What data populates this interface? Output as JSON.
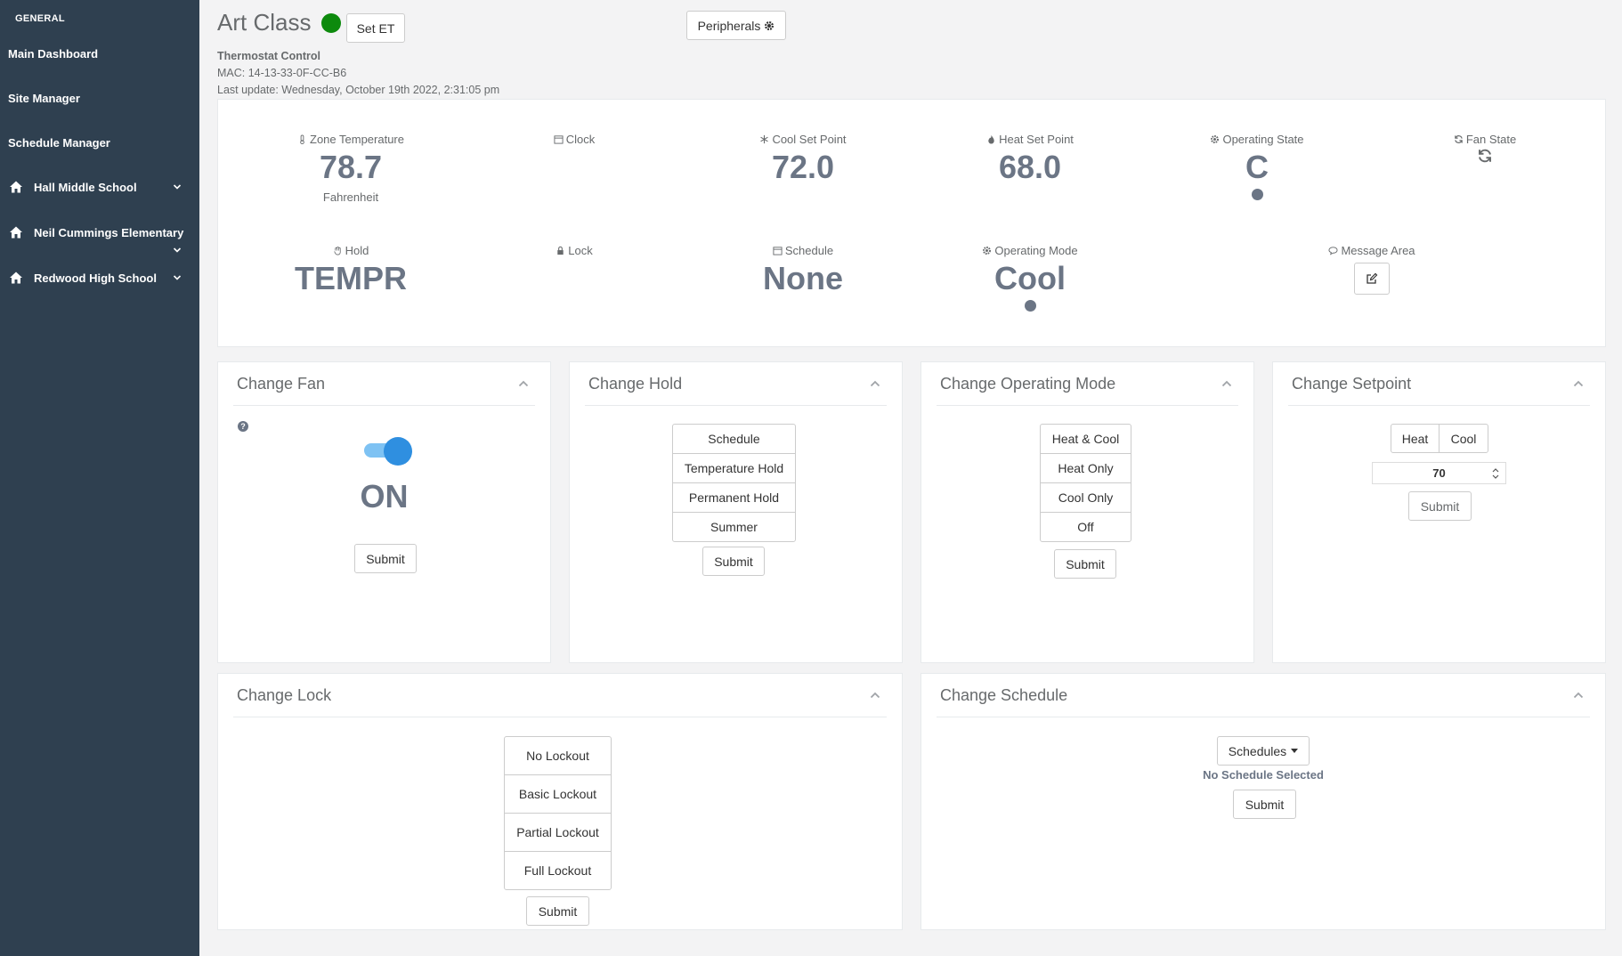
{
  "sidebar": {
    "section": "GENERAL",
    "items": [
      {
        "label": "Main Dashboard"
      },
      {
        "label": "Site Manager"
      },
      {
        "label": "Schedule Manager"
      },
      {
        "label": "Hall Middle School"
      },
      {
        "label": "Neil Cummings Elementary"
      },
      {
        "label": "Redwood High School"
      }
    ]
  },
  "header": {
    "title": "Art Class",
    "set_et_label": "Set ET",
    "peripherals_label": "Peripherals",
    "device_type": "Thermostat Control",
    "mac": "MAC: 14-13-33-0F-CC-B6",
    "last_update": "Last update: Wednesday, October 19th 2022, 2:31:05 pm",
    "status_color": "#0d8a0d"
  },
  "status": {
    "zone_temp": {
      "label": "Zone Temperature",
      "value": "78.7",
      "unit": "Fahrenheit"
    },
    "clock": {
      "label": "Clock"
    },
    "cool_set": {
      "label": "Cool Set Point",
      "value": "72.0"
    },
    "heat_set": {
      "label": "Heat Set Point",
      "value": "68.0"
    },
    "op_state": {
      "label": "Operating State",
      "value": "C"
    },
    "fan_state": {
      "label": "Fan State"
    },
    "hold": {
      "label": "Hold",
      "value": "TEMPR"
    },
    "lock": {
      "label": "Lock"
    },
    "schedule": {
      "label": "Schedule",
      "value": "None"
    },
    "op_mode": {
      "label": "Operating Mode",
      "value": "Cool"
    },
    "message": {
      "label": "Message Area"
    }
  },
  "cards": {
    "fan": {
      "title": "Change Fan",
      "state": "ON",
      "submit": "Submit"
    },
    "hold": {
      "title": "Change Hold",
      "options": [
        "Schedule",
        "Temperature Hold",
        "Permanent Hold",
        "Summer"
      ],
      "submit": "Submit"
    },
    "mode": {
      "title": "Change Operating Mode",
      "options": [
        "Heat & Cool",
        "Heat Only",
        "Cool Only",
        "Off"
      ],
      "submit": "Submit"
    },
    "setpoint": {
      "title": "Change Setpoint",
      "heat": "Heat",
      "cool": "Cool",
      "value": "70",
      "submit": "Submit"
    },
    "lock": {
      "title": "Change Lock",
      "options": [
        "No Lockout",
        "Basic Lockout",
        "Partial Lockout",
        "Full Lockout"
      ],
      "submit": "Submit"
    },
    "schedule": {
      "title": "Change Schedule",
      "dropdown": "Schedules",
      "none_selected": "No Schedule Selected",
      "submit": "Submit"
    }
  }
}
